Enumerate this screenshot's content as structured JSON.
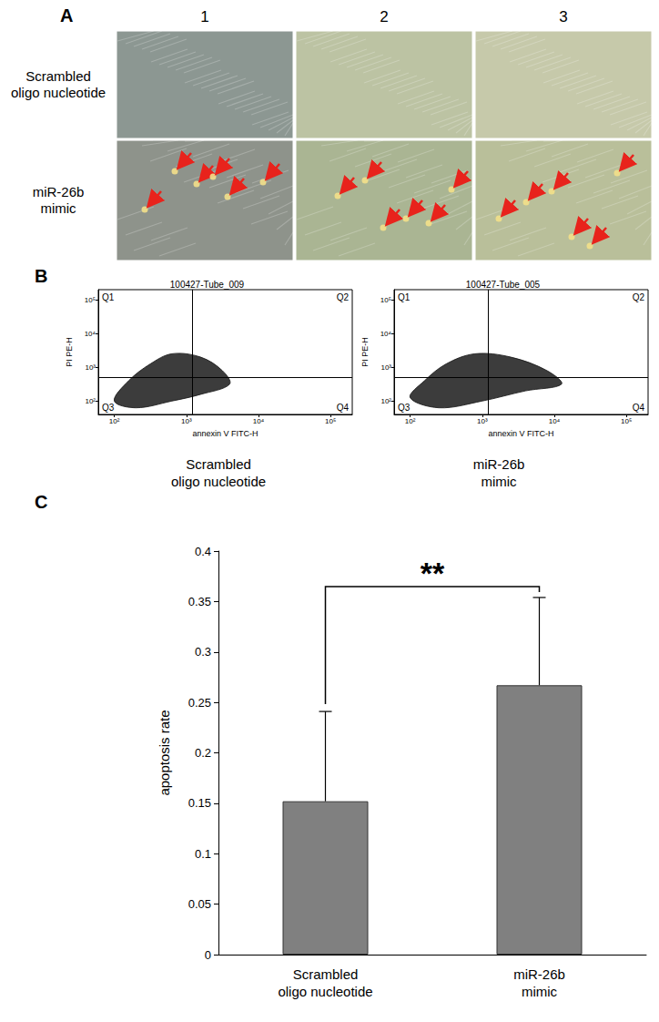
{
  "panel_labels": [
    "A",
    "B",
    "C"
  ],
  "figure": {
    "columns": [
      "1",
      "2",
      "3"
    ],
    "rows": [
      "Scrambled oligo nucleotide",
      "miR-26b mimic"
    ]
  },
  "chart_data": [
    {
      "type": "scatter",
      "title": "100427-Tube_009",
      "condition": "Scrambled oligo nucleotide",
      "x_label": "annexin V FITC-H",
      "y_label": "PI PE-H",
      "log": true,
      "color": "#1a1a1a",
      "xlim": [
        60,
        200000
      ],
      "ylim": [
        40,
        200000
      ],
      "xticks": [
        {
          "value": 100,
          "label": "10²"
        },
        {
          "value": 1000,
          "label": "10³"
        },
        {
          "value": 10000,
          "label": "10⁴"
        },
        {
          "value": 100000,
          "label": "10⁵"
        }
      ],
      "yticks": [
        {
          "value": 100,
          "label": "10²"
        },
        {
          "value": 1000,
          "label": "10³"
        },
        {
          "value": 10000,
          "label": "10⁴"
        },
        {
          "value": 100000,
          "label": "10⁵"
        }
      ],
      "gate": {
        "x": 1200,
        "y": 500
      },
      "quadrant_labels": [
        "Q1",
        "Q2",
        "Q3",
        "Q4"
      ],
      "population_outline": {
        "x": [
          100,
          200,
          631,
          1585,
          3981,
          3162,
          1585,
          631,
          316,
          158
        ],
        "y": [
          100,
          63,
          100,
          158,
          316,
          794,
          1995,
          2512,
          1259,
          398
        ]
      }
    },
    {
      "type": "scatter",
      "title": "100427-Tube_005",
      "condition": "miR-26b mimic",
      "x_label": "annexin V FITC-H",
      "y_label": "PI PE-H",
      "log": true,
      "color": "#1a1a1a",
      "xlim": [
        60,
        200000
      ],
      "ylim": [
        40,
        200000
      ],
      "xticks": [
        {
          "value": 100,
          "label": "10²"
        },
        {
          "value": 1000,
          "label": "10³"
        },
        {
          "value": 10000,
          "label": "10⁴"
        },
        {
          "value": 100000,
          "label": "10⁵"
        }
      ],
      "yticks": [
        {
          "value": 100,
          "label": "10²"
        },
        {
          "value": 1000,
          "label": "10³"
        },
        {
          "value": 10000,
          "label": "10⁴"
        },
        {
          "value": 100000,
          "label": "10⁵"
        }
      ],
      "gate": {
        "x": 1200,
        "y": 500
      },
      "quadrant_labels": [
        "Q1",
        "Q2",
        "Q3",
        "Q4"
      ],
      "population_outline": {
        "x": [
          100,
          251,
          1000,
          3981,
          12589,
          7943,
          2512,
          794,
          316,
          158
        ],
        "y": [
          126,
          63,
          100,
          200,
          316,
          794,
          1995,
          2512,
          1259,
          398
        ]
      }
    },
    {
      "type": "bar",
      "categories": [
        "Scrambled oligo nucleotide",
        "miR-26b mimic"
      ],
      "values": [
        0.152,
        0.267
      ],
      "errors": [
        0.089,
        0.087
      ],
      "color": "#808080",
      "y_label": "apoptosis rate",
      "ylim": [
        0,
        0.4
      ],
      "yticks": [
        0,
        0.05,
        0.1,
        0.15,
        0.2,
        0.25,
        0.3,
        0.35,
        0.4
      ],
      "grid": false,
      "significance": {
        "label": "**",
        "between": [
          0,
          1
        ]
      }
    }
  ]
}
